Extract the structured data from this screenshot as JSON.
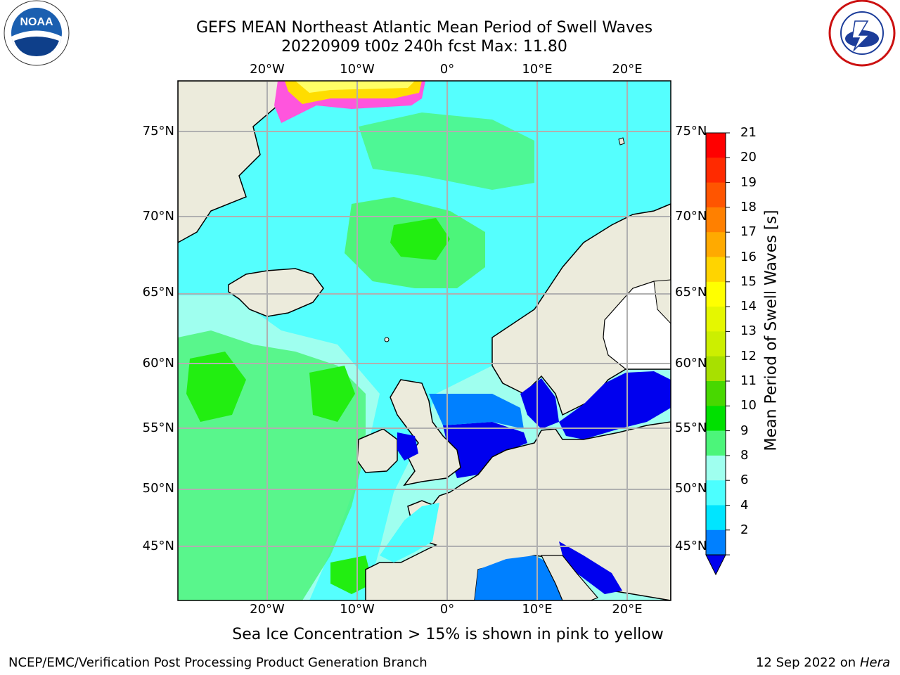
{
  "header": {
    "title_line1": "GEFS MEAN Northeast Atlantic Mean Period of Swell Waves",
    "title_line2": "20220909 t00z 240h fcst   Max: 11.80"
  },
  "logos": {
    "left": "noaa-logo",
    "left_text": "NATIONAL OCEANIC AND ATMOSPHERIC ADMINISTRATION · U.S. DEPARTMENT OF COMMERCE",
    "left_badge": "NOAA",
    "right": "nws-logo",
    "right_text": "NATIONAL WEATHER SERVICE"
  },
  "map": {
    "lon_labels": [
      "20°W",
      "10°W",
      "0°",
      "10°E",
      "20°E"
    ],
    "lat_labels": [
      "75°N",
      "70°N",
      "65°N",
      "60°N",
      "55°N",
      "50°N",
      "45°N"
    ],
    "colors": {
      "land": "#ecebdc",
      "ocean_deep": "#9fffef",
      "swell_8": "#4cffff",
      "swell_10": "#4cf57a",
      "swell_11": "#22ee11",
      "swell_4": "#0080ff",
      "swell_2": "#0000ee",
      "ice": "#ff55dd",
      "grid": "#b0b0b0"
    }
  },
  "colorbar": {
    "label": "Mean Period of Swell Waves [s]",
    "ticks": [
      "21",
      "20",
      "19",
      "18",
      "17",
      "16",
      "15",
      "14",
      "13",
      "12",
      "11",
      "10",
      "9",
      "8",
      "6",
      "4",
      "2"
    ],
    "colors": [
      "#ff0000",
      "#ff2a00",
      "#ff5500",
      "#ff8000",
      "#ffaa00",
      "#ffd400",
      "#ffff00",
      "#e5f700",
      "#ccef00",
      "#a8e000",
      "#48d800",
      "#00e000",
      "#4cf57a",
      "#9fffef",
      "#4cffff",
      "#00e5ff",
      "#0080ff"
    ],
    "under_color": "#0000ee"
  },
  "footer": {
    "note": "Sea Ice Concentration > 15% is shown in pink to yellow",
    "left": "NCEP/EMC/Verification Post Processing Product Generation Branch",
    "right_date": "12 Sep 2022 on",
    "right_host": "Hera"
  }
}
